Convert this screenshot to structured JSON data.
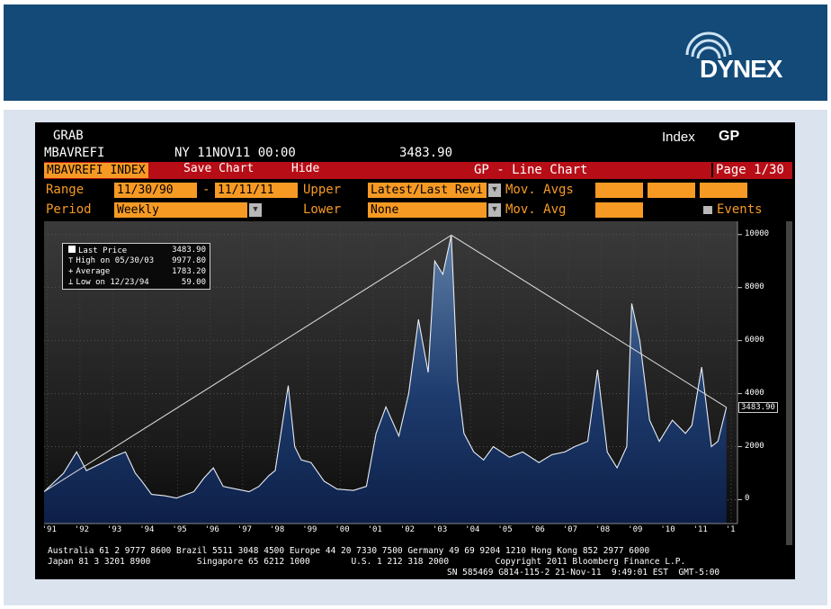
{
  "brand": {
    "logo_text": "DYNEX",
    "banner_color": "#134a78"
  },
  "terminal": {
    "grab": "GRAB",
    "ticker": "MBAVREFI",
    "datetime": "NY 11NOV11 00:00",
    "last_value": "3483.90",
    "index_label": "Index",
    "function_code": "GP",
    "security": "MBAVREFI INDEX",
    "save_chart": "Save Chart",
    "hide": "Hide",
    "chart_title": "GP - Line Chart",
    "page": "Page 1/30",
    "range_label": "Range",
    "range_start": "11/30/90",
    "range_sep": "-",
    "range_end": "11/11/11",
    "upper_label": "Upper",
    "upper_value": "Latest/Last Revi",
    "mov_avgs_label": "Mov. Avgs",
    "period_label": "Period",
    "period_value": "Weekly",
    "lower_label": "Lower",
    "lower_value": "None",
    "mov_avg_label": "Mov. Avg",
    "events_label": "Events"
  },
  "legend": {
    "last_price_label": "Last Price",
    "last_price": "3483.90",
    "high_label": "High on 05/30/03",
    "high": "9977.80",
    "average_label": "Average",
    "average": "1783.20",
    "low_label": "Low on 12/23/94",
    "low": "59.00"
  },
  "chart_data": {
    "type": "area",
    "title": "GP - Line Chart",
    "series": [
      {
        "name": "MBAVREFI INDEX",
        "x": [
          1990.9,
          1991.5,
          1991.9,
          1992.2,
          1992.7,
          1993.0,
          1993.4,
          1993.7,
          1993.9,
          1994.2,
          1994.6,
          1994.97,
          1995.5,
          1995.8,
          1996.1,
          1996.4,
          1996.8,
          1997.2,
          1997.5,
          1997.8,
          1998.0,
          1998.4,
          1998.6,
          1998.8,
          1999.1,
          1999.5,
          1999.9,
          2000.4,
          2000.8,
          2001.1,
          2001.4,
          2001.8,
          2002.1,
          2002.4,
          2002.7,
          2002.9,
          2003.15,
          2003.41,
          2003.6,
          2003.8,
          2004.1,
          2004.4,
          2004.7,
          2005.2,
          2005.6,
          2006.1,
          2006.5,
          2006.9,
          2007.2,
          2007.6,
          2007.9,
          2008.2,
          2008.5,
          2008.8,
          2008.95,
          2009.2,
          2009.5,
          2009.8,
          2010.2,
          2010.6,
          2010.8,
          2011.1,
          2011.4,
          2011.6,
          2011.86
        ],
        "values": [
          300,
          1000,
          1800,
          1100,
          1400,
          1600,
          1800,
          1000,
          700,
          200,
          150,
          59,
          300,
          800,
          1200,
          500,
          400,
          300,
          500,
          900,
          1100,
          4300,
          2000,
          1500,
          1400,
          700,
          400,
          350,
          500,
          2500,
          3500,
          2400,
          4000,
          6800,
          4800,
          9000,
          8500,
          9977.8,
          4500,
          2500,
          1800,
          1500,
          2000,
          1600,
          1800,
          1400,
          1700,
          1800,
          2000,
          2200,
          4900,
          1800,
          1200,
          2000,
          7400,
          6000,
          3000,
          2200,
          3000,
          2500,
          2800,
          5000,
          2000,
          2200,
          3483.9
        ]
      }
    ],
    "trendlines": [
      {
        "from": {
          "x": 1990.9,
          "y": 300
        },
        "to": {
          "x": 2003.41,
          "y": 9977.8
        }
      },
      {
        "from": {
          "x": 2003.41,
          "y": 9977.8
        },
        "to": {
          "x": 2011.86,
          "y": 3483.9
        }
      }
    ],
    "xticks": [
      "'91",
      "'92",
      "'93",
      "'94",
      "'95",
      "'96",
      "'97",
      "'98",
      "'99",
      "'00",
      "'01",
      "'02",
      "'03",
      "'04",
      "'05",
      "'06",
      "'07",
      "'08",
      "'09",
      "'10",
      "'11",
      "'1"
    ],
    "yticks": [
      "10000",
      "8000",
      "6000",
      "4000",
      "2000",
      "0"
    ],
    "ylim": [
      -900,
      10500
    ],
    "last_label": "3483.90",
    "grid": true
  },
  "footer": {
    "line1": "Australia 61 2 9777 8600 Brazil 5511 3048 4500 Europe 44 20 7330 7500 Germany 49 69 9204 1210 Hong Kong 852 2977 6000",
    "line2": "Japan 81 3 3201 8900         Singapore 65 6212 1000        U.S. 1 212 318 2000         Copyright 2011 Bloomberg Finance L.P.",
    "line3": "SN 585469 G814-115-2 21-Nov-11  9:49:01 EST  GMT-5:00"
  }
}
